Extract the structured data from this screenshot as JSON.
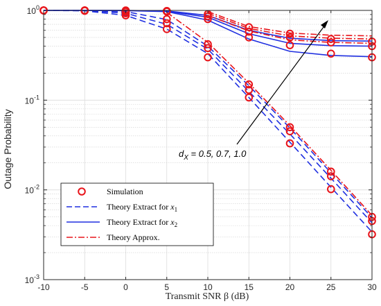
{
  "chart_data": {
    "type": "line",
    "xlabel": "Transmit SNR β (dB)",
    "ylabel": "Outage Probability",
    "x_ticks": [
      "-10",
      "-5",
      "0",
      "5",
      "10",
      "15",
      "20",
      "25",
      "30"
    ],
    "y_tick_base": "10",
    "y_tick_exps": [
      "0",
      "-1",
      "-2",
      "-3"
    ],
    "xlim": [
      -10,
      30
    ],
    "ylim": [
      0.001,
      1
    ],
    "yscale": "log",
    "grid": true,
    "legend_position": "bottom-left",
    "legend": [
      {
        "label": "Simulation",
        "style": "marker-circle",
        "color": "#e8141a"
      },
      {
        "label_main": "Theory Extract for ",
        "label_sub": "1",
        "style": "dashed",
        "color": "#1f2fe0"
      },
      {
        "label_main": "Theory Extract for ",
        "label_sub": "2",
        "style": "solid",
        "color": "#1f2fe0"
      },
      {
        "label": "Theory Approx.",
        "style": "dashdot",
        "color": "#e8141a"
      }
    ],
    "annotation": {
      "prefix": "d",
      "subscript": "X",
      "text": " = 0.5, 0.7, 1.0"
    },
    "x": [
      -10,
      -5,
      0,
      5,
      10,
      15,
      20,
      25,
      30
    ],
    "series": [
      {
        "group": "x1",
        "style": "dashed",
        "color": "#1f2fe0",
        "values": [
          1.0,
          0.99,
          0.88,
          0.62,
          0.33,
          0.107,
          0.034,
          0.0107,
          0.0034
        ]
      },
      {
        "group": "x1",
        "style": "dashed",
        "color": "#1f2fe0",
        "values": [
          1.0,
          0.995,
          0.93,
          0.7,
          0.37,
          0.125,
          0.042,
          0.0135,
          0.0043
        ]
      },
      {
        "group": "x1",
        "style": "dashed",
        "color": "#1f2fe0",
        "values": [
          1.0,
          0.998,
          0.97,
          0.79,
          0.4,
          0.145,
          0.049,
          0.0155,
          0.0049
        ]
      },
      {
        "group": "x2",
        "style": "solid",
        "color": "#1f2fe0",
        "values": [
          1.0,
          1.0,
          0.995,
          0.97,
          0.78,
          0.48,
          0.35,
          0.315,
          0.305
        ]
      },
      {
        "group": "x2",
        "style": "solid",
        "color": "#1f2fe0",
        "values": [
          1.0,
          1.0,
          0.997,
          0.98,
          0.84,
          0.55,
          0.43,
          0.405,
          0.4
        ]
      },
      {
        "group": "x2",
        "style": "solid",
        "color": "#1f2fe0",
        "values": [
          1.0,
          1.0,
          0.998,
          0.985,
          0.88,
          0.6,
          0.49,
          0.46,
          0.455
        ]
      },
      {
        "group": "approx",
        "style": "dashdot",
        "color": "#e8141a",
        "values": [
          null,
          null,
          null,
          null,
          0.88,
          0.59,
          0.47,
          0.44,
          0.43
        ]
      },
      {
        "group": "approx",
        "style": "dashdot",
        "color": "#e8141a",
        "values": [
          null,
          null,
          null,
          null,
          0.93,
          0.63,
          0.52,
          0.49,
          0.48
        ]
      },
      {
        "group": "approx",
        "style": "dashdot",
        "color": "#e8141a",
        "values": [
          null,
          null,
          null,
          null,
          0.97,
          0.66,
          0.56,
          0.53,
          0.52
        ]
      },
      {
        "group": "approx",
        "style": "dashdot",
        "color": "#e8141a",
        "values": [
          null,
          null,
          null,
          0.95,
          0.44,
          0.155,
          0.052,
          0.0165,
          0.0052
        ]
      }
    ],
    "simulation": {
      "color": "#e8141a",
      "x": [
        -10,
        -5,
        0,
        5,
        10,
        15,
        20,
        25,
        30
      ],
      "series": [
        [
          1.0,
          0.99,
          0.88,
          0.62,
          0.3,
          0.107,
          0.033,
          0.0102,
          0.0032
        ],
        [
          1.0,
          0.995,
          0.93,
          0.72,
          0.38,
          0.13,
          0.045,
          0.0142,
          0.0045
        ],
        [
          1.0,
          0.998,
          0.97,
          0.8,
          0.42,
          0.15,
          0.05,
          0.016,
          0.005
        ],
        [
          1.0,
          1.0,
          0.99,
          0.97,
          0.8,
          0.5,
          0.41,
          0.33,
          0.3
        ],
        [
          1.0,
          1.0,
          0.995,
          0.98,
          0.86,
          0.58,
          0.5,
          0.44,
          0.4
        ],
        [
          1.0,
          1.0,
          0.998,
          0.985,
          0.91,
          0.65,
          0.55,
          0.48,
          0.45
        ]
      ]
    }
  }
}
